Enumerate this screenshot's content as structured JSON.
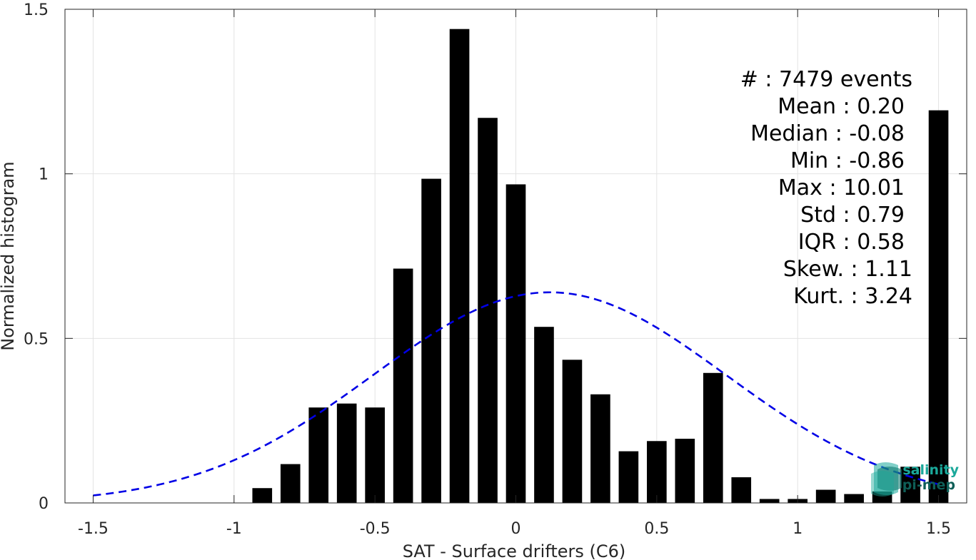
{
  "chart_data": {
    "type": "bar",
    "title": "",
    "xlabel": "SAT - Surface drifters (C6)",
    "ylabel": "Normalized histogram",
    "xlim": [
      -1.6,
      1.6
    ],
    "ylim": [
      0,
      1.5
    ],
    "xticks": [
      "-1.5",
      "-1",
      "-0.5",
      "0",
      "0.5",
      "1",
      "1.5"
    ],
    "yticks": [
      "0",
      "0.5",
      "1",
      "1.5"
    ],
    "grid": true,
    "bar_width": 0.07,
    "bar_color": "#000000",
    "bars": [
      {
        "x": -0.9,
        "y": 0.045
      },
      {
        "x": -0.8,
        "y": 0.118
      },
      {
        "x": -0.7,
        "y": 0.29
      },
      {
        "x": -0.6,
        "y": 0.302
      },
      {
        "x": -0.5,
        "y": 0.29
      },
      {
        "x": -0.4,
        "y": 0.712
      },
      {
        "x": -0.3,
        "y": 0.985
      },
      {
        "x": -0.2,
        "y": 1.44
      },
      {
        "x": -0.1,
        "y": 1.17
      },
      {
        "x": 0.0,
        "y": 0.968
      },
      {
        "x": 0.1,
        "y": 0.535
      },
      {
        "x": 0.2,
        "y": 0.435
      },
      {
        "x": 0.3,
        "y": 0.33
      },
      {
        "x": 0.4,
        "y": 0.157
      },
      {
        "x": 0.5,
        "y": 0.188
      },
      {
        "x": 0.6,
        "y": 0.195
      },
      {
        "x": 0.7,
        "y": 0.395
      },
      {
        "x": 0.8,
        "y": 0.078
      },
      {
        "x": 0.9,
        "y": 0.012
      },
      {
        "x": 1.0,
        "y": 0.012
      },
      {
        "x": 1.1,
        "y": 0.04
      },
      {
        "x": 1.2,
        "y": 0.027
      },
      {
        "x": 1.3,
        "y": 0.035
      },
      {
        "x": 1.4,
        "y": 0.11
      },
      {
        "x": 1.5,
        "y": 1.193
      }
    ],
    "gaussian_fit": {
      "mean": 0.12,
      "std": 0.627,
      "peak": 0.64,
      "x_range": [
        -1.5,
        1.5
      ],
      "color": "#0000e6",
      "style": "dashed"
    },
    "annotations": [
      {
        "id": "count",
        "text": "#  : 7479 events"
      },
      {
        "id": "mean",
        "text": "Mean : 0.20"
      },
      {
        "id": "median",
        "text": "Median : -0.08"
      },
      {
        "id": "min",
        "text": "Min : -0.86"
      },
      {
        "id": "max",
        "text": "Max : 10.01"
      },
      {
        "id": "std",
        "text": "Std : 0.79"
      },
      {
        "id": "iqr",
        "text": "IQR : 0.58"
      },
      {
        "id": "skew",
        "text": "Skew. : 1.11"
      },
      {
        "id": "kurt",
        "text": "Kurt. : 3.24"
      }
    ]
  },
  "logo": {
    "line1": "salinity",
    "line2": "pi-mep",
    "color_primary": "#1aa89a",
    "color_secondary": "#0e5e57"
  }
}
